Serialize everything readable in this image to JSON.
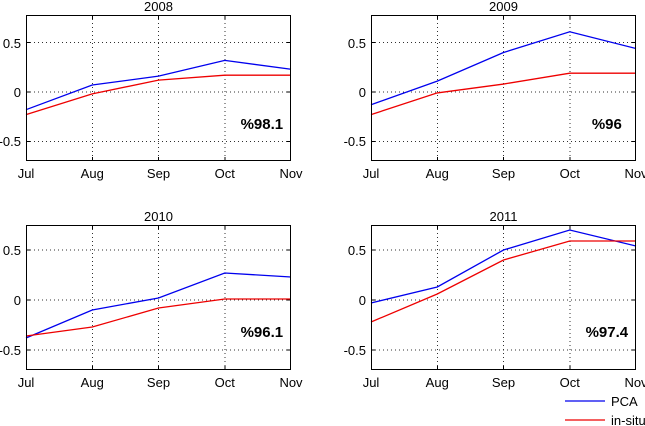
{
  "figure": {
    "background": "#ffffff"
  },
  "colors": {
    "pca": "#0000ee",
    "insitu": "#ee0000",
    "axis": "#000000",
    "grid": "#303030",
    "text": "#000000"
  },
  "legend": {
    "entries": [
      {
        "name": "PCA",
        "color": "#0000ee"
      },
      {
        "name": "in-situ",
        "color": "#ee0000"
      }
    ]
  },
  "chart_data": [
    {
      "type": "line",
      "title": "2008",
      "annotation": "%98.1",
      "categories": [
        "Jul",
        "Aug",
        "Sep",
        "Oct",
        "Nov"
      ],
      "y_ticks": [
        -0.5,
        0,
        0.5
      ],
      "y_ticklabels": [
        "-0.5",
        "0",
        "0.5"
      ],
      "ylim": [
        -0.7,
        0.78
      ],
      "grid": true,
      "series": [
        {
          "name": "PCA",
          "color": "#0000ee",
          "values": [
            -0.18,
            0.07,
            0.16,
            0.32,
            0.23
          ]
        },
        {
          "name": "in-situ",
          "color": "#ee0000",
          "values": [
            -0.23,
            -0.02,
            0.12,
            0.17,
            0.17
          ]
        }
      ]
    },
    {
      "type": "line",
      "title": "2009",
      "annotation": "%96",
      "categories": [
        "Jul",
        "Aug",
        "Sep",
        "Oct",
        "Nov"
      ],
      "y_ticks": [
        -0.5,
        0,
        0.5
      ],
      "y_ticklabels": [
        "-0.5",
        "0",
        "0.5"
      ],
      "ylim": [
        -0.7,
        0.78
      ],
      "grid": true,
      "series": [
        {
          "name": "PCA",
          "color": "#0000ee",
          "values": [
            -0.13,
            0.11,
            0.4,
            0.61,
            0.44
          ]
        },
        {
          "name": "in-situ",
          "color": "#ee0000",
          "values": [
            -0.23,
            -0.01,
            0.08,
            0.19,
            0.19
          ]
        }
      ]
    },
    {
      "type": "line",
      "title": "2010",
      "annotation": "%96.1",
      "categories": [
        "Jul",
        "Aug",
        "Sep",
        "Oct",
        "Nov"
      ],
      "y_ticks": [
        -0.5,
        0,
        0.5
      ],
      "y_ticklabels": [
        "-0.5",
        "0",
        "0.5"
      ],
      "ylim": [
        -0.7,
        0.75
      ],
      "grid": true,
      "series": [
        {
          "name": "PCA",
          "color": "#0000ee",
          "values": [
            -0.38,
            -0.1,
            0.02,
            0.27,
            0.23
          ]
        },
        {
          "name": "in-situ",
          "color": "#ee0000",
          "values": [
            -0.36,
            -0.27,
            -0.08,
            0.01,
            0.01
          ]
        }
      ]
    },
    {
      "type": "line",
      "title": "2011",
      "annotation": "%97.4",
      "categories": [
        "Jul",
        "Aug",
        "Sep",
        "Oct",
        "Nov"
      ],
      "y_ticks": [
        -0.5,
        0,
        0.5
      ],
      "y_ticklabels": [
        "-0.5",
        "0",
        "0.5"
      ],
      "ylim": [
        -0.7,
        0.75
      ],
      "grid": true,
      "series": [
        {
          "name": "PCA",
          "color": "#0000ee",
          "values": [
            -0.03,
            0.13,
            0.5,
            0.7,
            0.54
          ]
        },
        {
          "name": "in-situ",
          "color": "#ee0000",
          "values": [
            -0.22,
            0.06,
            0.4,
            0.59,
            0.59
          ]
        }
      ]
    }
  ]
}
